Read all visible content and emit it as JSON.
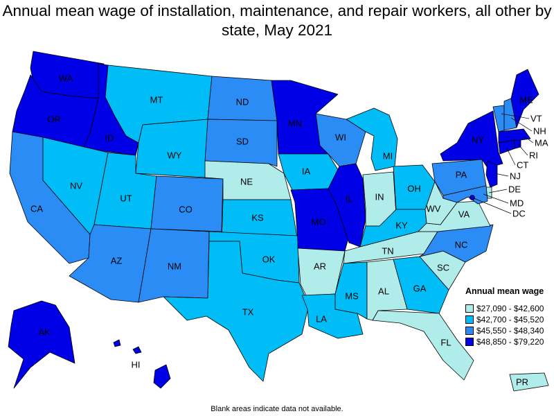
{
  "title": "Annual mean wage of installation, maintenance, and repair workers, all other by state, May 2021",
  "colors": {
    "tier1": "#b0ecea",
    "tier2": "#00bdf7",
    "tier3": "#2a8cf4",
    "tier4": "#0000e6"
  },
  "legend": {
    "title": "Annual mean wage",
    "items": [
      {
        "label": "$27,090 - $42,600",
        "color": "#b0ecea"
      },
      {
        "label": "$42,700 - $45,520",
        "color": "#00bdf7"
      },
      {
        "label": "$45,550 - $48,340",
        "color": "#2a8cf4"
      },
      {
        "label": "$48,850 - $79,220",
        "color": "#0000e6"
      }
    ]
  },
  "states": {
    "WA": 4,
    "OR": 4,
    "ID": 4,
    "MT": 2,
    "WY": 2,
    "CA": 3,
    "NV": 2,
    "UT": 2,
    "AZ": 3,
    "CO": 3,
    "NM": 3,
    "ND": 3,
    "SD": 3,
    "NE": 1,
    "KS": 2,
    "OK": 2,
    "TX": 2,
    "MN": 4,
    "IA": 2,
    "MO": 4,
    "AR": 1,
    "LA": 2,
    "WI": 3,
    "IL": 4,
    "MS": 2,
    "MI": 2,
    "IN": 1,
    "OH": 2,
    "KY": 2,
    "TN": 1,
    "AL": 1,
    "GA": 2,
    "FL": 1,
    "SC": 1,
    "NC": 3,
    "VA": 1,
    "WV": 1,
    "PA": 3,
    "NY": 4,
    "VT": 3,
    "NH": 3,
    "ME": 4,
    "MA": 4,
    "RI": 4,
    "CT": 4,
    "NJ": 4,
    "DE": 1,
    "MD": 3,
    "DC": 4,
    "AK": 4,
    "HI": 4,
    "PR": 1
  },
  "footnote": "Blank areas indicate data not available."
}
